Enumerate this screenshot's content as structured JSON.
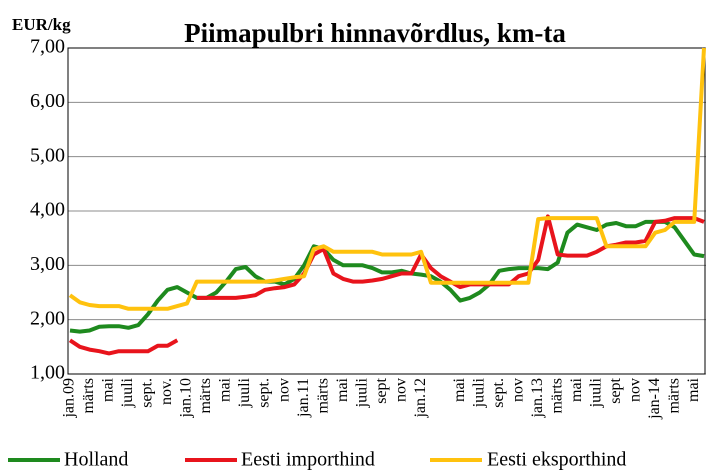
{
  "chart_data": {
    "type": "line",
    "title": "Piimapulbri hinnavõrdlus, km-ta",
    "y_label": "EUR/kg",
    "categories": [
      "jan.09",
      null,
      "märts",
      null,
      "mai",
      null,
      "juuli",
      null,
      "sept.",
      null,
      "nov.",
      null,
      "jan.10",
      null,
      "märts",
      null,
      "mai",
      null,
      "juuli",
      null,
      "sept.",
      null,
      "nov",
      null,
      "jan.11",
      null,
      "märts",
      null,
      "mai",
      null,
      "juuli",
      null,
      "sept",
      null,
      "nov",
      null,
      "jan.12",
      null,
      null,
      null,
      "mai",
      null,
      "juuli",
      null,
      "sept.",
      null,
      "nov",
      null,
      "jan.13",
      null,
      "märts",
      null,
      "mai",
      null,
      "juuli",
      null,
      "sept",
      null,
      "nov",
      null,
      "jan-14",
      null,
      "märts",
      null,
      "mai",
      null
    ],
    "series": [
      {
        "name": "Holland",
        "color": "#1e8a1e",
        "values": [
          1.8,
          1.78,
          1.8,
          1.87,
          1.88,
          1.88,
          1.85,
          1.9,
          2.1,
          2.35,
          2.55,
          2.6,
          2.5,
          2.4,
          2.4,
          2.5,
          2.7,
          2.93,
          2.97,
          2.8,
          2.7,
          2.7,
          2.65,
          2.75,
          3.0,
          3.35,
          3.3,
          3.1,
          3.0,
          3.0,
          3.0,
          2.95,
          2.87,
          2.87,
          2.9,
          2.85,
          2.83,
          2.8,
          2.7,
          2.55,
          2.35,
          2.4,
          2.5,
          2.65,
          2.9,
          2.93,
          2.95,
          2.95,
          2.95,
          2.93,
          3.05,
          3.6,
          3.75,
          3.7,
          3.65,
          3.75,
          3.78,
          3.72,
          3.72,
          3.8,
          3.8,
          3.8,
          3.7,
          3.45,
          3.2,
          3.17
        ]
      },
      {
        "name": "Eesti importhind",
        "color": "#e8141c",
        "values": [
          1.62,
          1.5,
          1.45,
          1.42,
          1.38,
          1.42,
          1.42,
          1.42,
          1.42,
          1.52,
          1.52,
          1.62,
          null,
          2.4,
          2.4,
          2.4,
          2.4,
          2.4,
          2.42,
          2.45,
          2.55,
          2.58,
          2.6,
          2.65,
          2.85,
          3.2,
          3.3,
          2.85,
          2.75,
          2.7,
          2.7,
          2.72,
          2.75,
          2.8,
          2.85,
          2.85,
          3.2,
          2.95,
          2.8,
          2.7,
          2.6,
          2.65,
          2.65,
          2.65,
          2.65,
          2.65,
          2.8,
          2.85,
          3.1,
          3.9,
          3.2,
          3.18,
          3.18,
          3.18,
          3.25,
          3.35,
          3.38,
          3.42,
          3.42,
          3.45,
          3.8,
          3.82,
          3.87,
          3.87,
          3.87,
          3.8
        ]
      },
      {
        "name": "Eesti eksporthind",
        "color": "#ffc20e",
        "values": [
          2.45,
          2.32,
          2.27,
          2.25,
          2.25,
          2.25,
          2.2,
          2.2,
          2.2,
          2.2,
          2.2,
          2.25,
          2.3,
          2.7,
          2.7,
          2.7,
          2.7,
          2.7,
          2.7,
          2.7,
          2.7,
          2.72,
          2.75,
          2.78,
          2.8,
          3.3,
          3.35,
          3.25,
          3.25,
          3.25,
          3.25,
          3.25,
          3.2,
          3.2,
          3.2,
          3.2,
          3.25,
          2.68,
          2.68,
          2.68,
          2.68,
          2.68,
          2.68,
          2.68,
          2.68,
          2.68,
          2.68,
          2.68,
          3.85,
          3.87,
          3.87,
          3.87,
          3.87,
          3.87,
          3.87,
          3.35,
          3.35,
          3.35,
          3.35,
          3.35,
          3.6,
          3.65,
          3.8,
          3.8,
          3.8,
          7.0
        ]
      }
    ],
    "ylim": [
      1,
      7
    ],
    "yticks": [
      {
        "value": 1,
        "label": "1,00"
      },
      {
        "value": 2,
        "label": "2,00"
      },
      {
        "value": 3,
        "label": "3,00"
      },
      {
        "value": 4,
        "label": "4,00"
      },
      {
        "value": 5,
        "label": "5,00"
      },
      {
        "value": 6,
        "label": "6,00"
      },
      {
        "value": 7,
        "label": "7,00"
      }
    ],
    "grid": true,
    "legend": "bottom"
  }
}
